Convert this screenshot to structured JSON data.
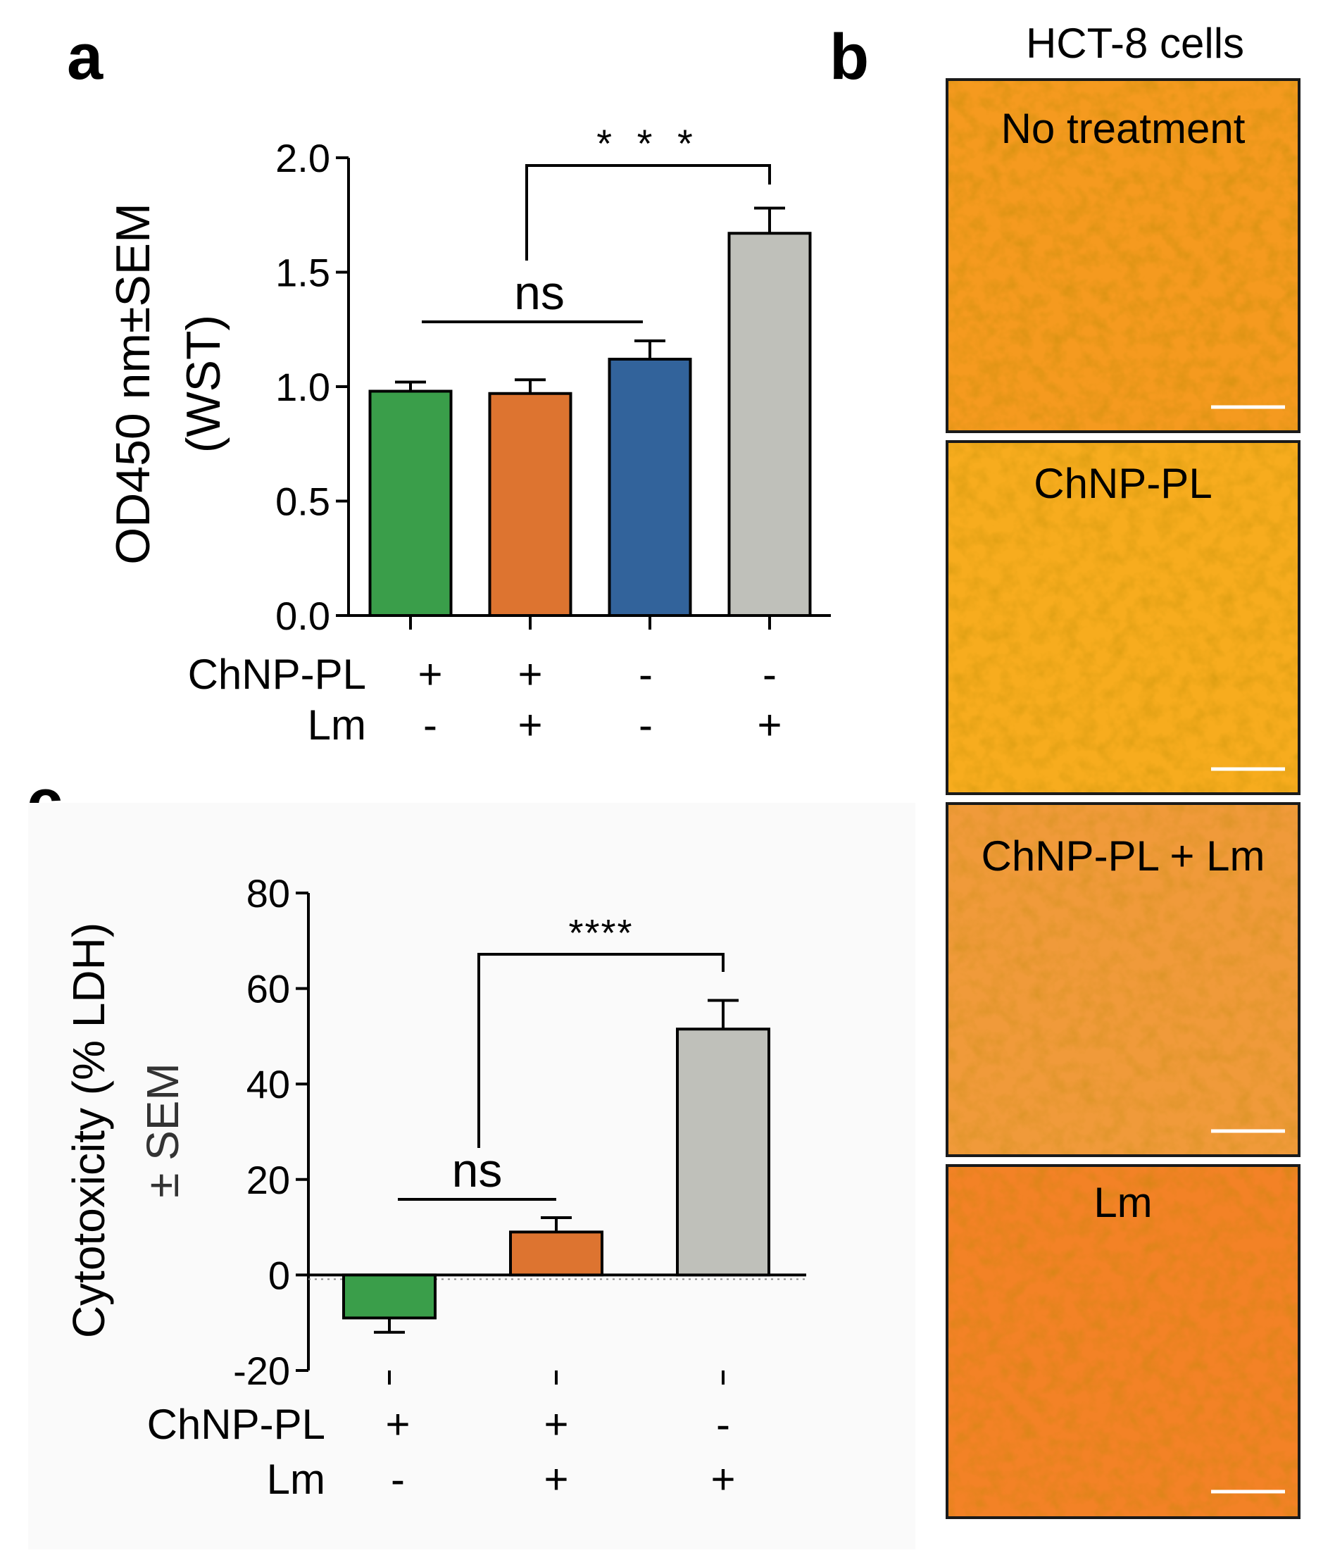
{
  "chart_data": [
    {
      "panel": "a",
      "type": "bar",
      "ylabel": [
        "OD450 nm±SEM",
        "(WST)"
      ],
      "ylim": [
        0,
        2.0
      ],
      "yticks": [
        "0.0",
        "0.5",
        "1.0",
        "1.5",
        "2.0"
      ],
      "ytick_values": [
        0,
        0.5,
        1.0,
        1.5,
        2.0
      ],
      "values": [
        0.98,
        0.97,
        1.12,
        1.67
      ],
      "errors": [
        0.04,
        0.06,
        0.08,
        0.11
      ],
      "colors": [
        "#3a9e4a",
        "#dd7430",
        "#32639b",
        "#bfc0ba"
      ],
      "conditions": [
        {
          "label": "ChNP-PL",
          "values": [
            "+",
            "+",
            "-",
            "-"
          ]
        },
        {
          "label": "Lm",
          "values": [
            "-",
            "+",
            "-",
            "+"
          ]
        }
      ],
      "annotations": [
        {
          "type": "line",
          "text": "ns",
          "from": 0,
          "to": 2
        },
        {
          "type": "bracket",
          "text": "* * *",
          "from": 1,
          "to": 3
        }
      ]
    },
    {
      "panel": "c",
      "type": "bar",
      "ylabel": [
        "Cytotoxicity (% LDH)",
        "± SEM"
      ],
      "ylim": [
        -20,
        80
      ],
      "yticks": [
        "-20",
        "0",
        "20",
        "40",
        "60",
        "80"
      ],
      "ytick_values": [
        -20,
        0,
        20,
        40,
        60,
        80
      ],
      "values": [
        -9,
        9,
        51.5
      ],
      "errors": [
        3,
        3,
        6
      ],
      "colors": [
        "#3a9e4a",
        "#dd7430",
        "#bfc0ba"
      ],
      "conditions": [
        {
          "label": "ChNP-PL",
          "values": [
            "+",
            "+",
            "-"
          ]
        },
        {
          "label": "Lm",
          "values": [
            "-",
            "+",
            "+"
          ]
        }
      ],
      "annotations": [
        {
          "type": "line",
          "text": "ns",
          "from": 0,
          "to": 1
        },
        {
          "type": "bracket",
          "text": "****",
          "from": 1,
          "to": 2
        }
      ]
    }
  ],
  "panel_labels": {
    "a": "a",
    "b": "b",
    "c": "c"
  },
  "micrographs": {
    "title": "HCT-8 cells",
    "panels": [
      {
        "label": "No treatment",
        "color": "#f59a1f"
      },
      {
        "label": "ChNP-PL",
        "color": "#f7ac1e"
      },
      {
        "label": "ChNP-PL + Lm",
        "color": "#f09a3a"
      },
      {
        "label": "Lm",
        "color": "#f38226"
      }
    ]
  }
}
